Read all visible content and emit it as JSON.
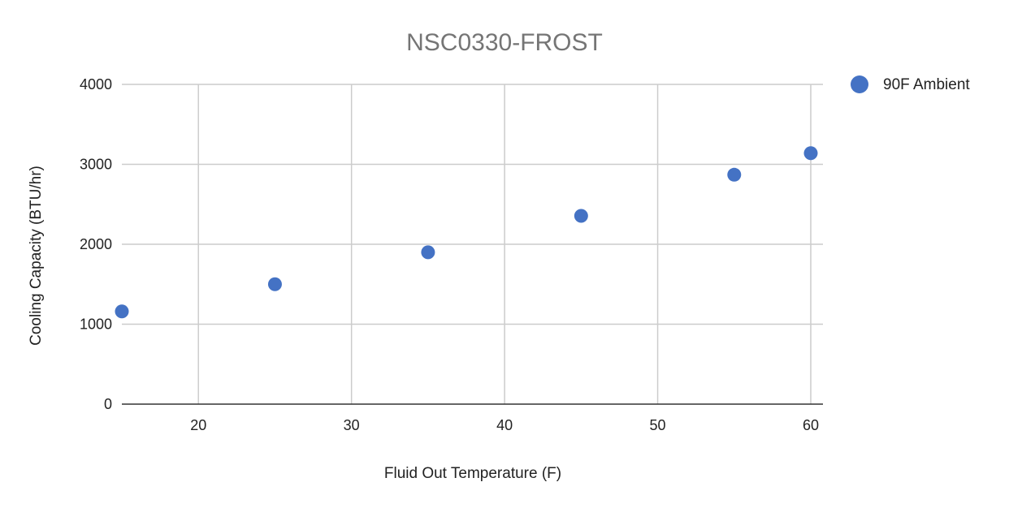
{
  "chart_data": {
    "type": "scatter",
    "title": "NSC0330-FROST",
    "xlabel": "Fluid Out Temperature (F)",
    "ylabel": "Cooling Capacity (BTU/hr)",
    "xlim": [
      15,
      60
    ],
    "ylim": [
      0,
      4000
    ],
    "x_ticks": [
      20,
      30,
      40,
      50,
      60
    ],
    "y_ticks": [
      0,
      1000,
      2000,
      3000,
      4000
    ],
    "grid": true,
    "legend_position": "top-right",
    "series": [
      {
        "name": "90F Ambient",
        "color": "#4472c4",
        "points": [
          {
            "x": 15,
            "y": 1160
          },
          {
            "x": 25,
            "y": 1500
          },
          {
            "x": 35,
            "y": 1900
          },
          {
            "x": 45,
            "y": 2355
          },
          {
            "x": 55,
            "y": 2870
          },
          {
            "x": 60,
            "y": 3140
          }
        ]
      }
    ]
  }
}
